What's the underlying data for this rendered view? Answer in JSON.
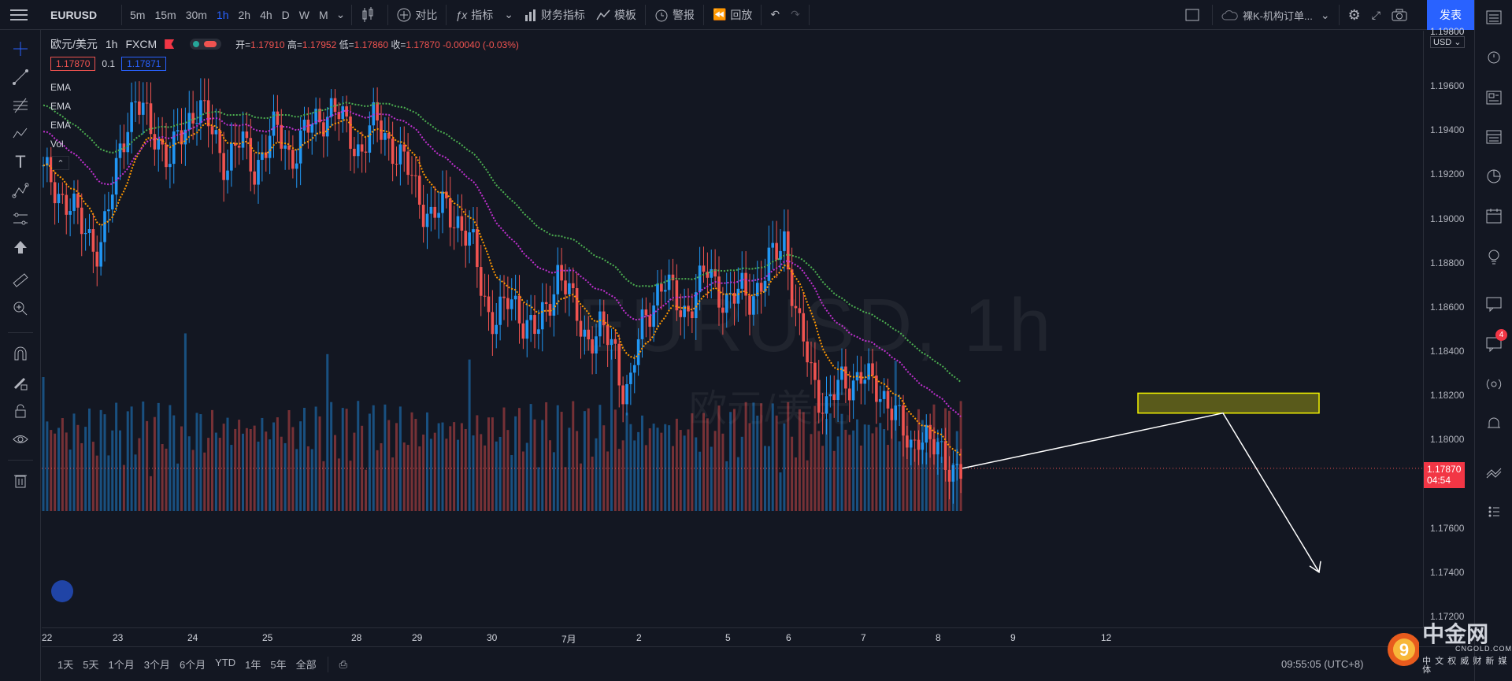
{
  "toolbar": {
    "symbol": "EURUSD",
    "intervals": [
      "5m",
      "15m",
      "30m",
      "1h",
      "2h",
      "4h",
      "D",
      "W",
      "M"
    ],
    "active_interval": "1h",
    "compare": "对比",
    "indicators": "指标",
    "financials": "财务指标",
    "templates": "模板",
    "alerts": "警报",
    "replay": "回放",
    "layout_name": "裸K-机构订单...",
    "publish": "发表"
  },
  "legend": {
    "title": "欧元/美元",
    "interval": "1h",
    "exchange": "FXCM",
    "open_label": "开=",
    "open": "1.17910",
    "high_label": "高=",
    "high": "1.17952",
    "low_label": "低=",
    "low": "1.17860",
    "close_label": "收=",
    "close": "1.17870",
    "change": "-0.00040 (-0.03%)",
    "bid": "1.17870",
    "spread": "0.1",
    "ask": "1.17871",
    "indicators": [
      "EMA",
      "EMA",
      "EMA",
      "Vol"
    ]
  },
  "watermark": {
    "symbol": "EURUSD, 1h",
    "name": "欧元/美元"
  },
  "price_axis": {
    "currency": "USD",
    "top_label": "1.19800",
    "labels": [
      "1.19600",
      "1.19400",
      "1.19200",
      "1.19000",
      "1.18800",
      "1.18600",
      "1.18400",
      "1.18200",
      "1.18000",
      "1.17600",
      "1.17400",
      "1.17200"
    ],
    "last_price": "1.17870",
    "countdown": "04:54"
  },
  "time_axis": [
    "22",
    "23",
    "24",
    "25",
    "28",
    "29",
    "30",
    "7月",
    "2",
    "5",
    "6",
    "7",
    "8",
    "9",
    "12"
  ],
  "bottom": {
    "ranges": [
      "1天",
      "5天",
      "1个月",
      "3个月",
      "6个月",
      "YTD",
      "1年",
      "5年",
      "全部"
    ],
    "clock": "09:55:05 (UTC+8)"
  },
  "logo": {
    "name": "中金网",
    "domain": "CNGOLD.COM",
    "tagline": "中 文 权 威 财 新 媒 体"
  },
  "colors": {
    "up": "#2196f3",
    "down": "#ef5350",
    "ema_fast": "#ff9800",
    "ema_mid": "#c030d0",
    "ema_slow": "#4caf50",
    "zone": "#6b6b1a",
    "zone_border": "#f5f500",
    "accent": "#2962ff"
  },
  "chart_data": {
    "type": "candlestick",
    "xlabel": "",
    "ylabel": "",
    "ylim": [
      1.1715,
      1.1985
    ],
    "close_series": [
      1.192,
      1.1918,
      1.1913,
      1.1908,
      1.1905,
      1.1898,
      1.1895,
      1.189,
      1.1885,
      1.19,
      1.1915,
      1.1935,
      1.1945,
      1.1952,
      1.1948,
      1.1942,
      1.1938,
      1.1932,
      1.1925,
      1.1935,
      1.194,
      1.1948,
      1.1952,
      1.1945,
      1.1938,
      1.193,
      1.1925,
      1.1932,
      1.1935,
      1.1928,
      1.1922,
      1.193,
      1.1936,
      1.194,
      1.1935,
      1.1928,
      1.1932,
      1.1938,
      1.1942,
      1.1945,
      1.1948,
      1.195,
      1.1946,
      1.194,
      1.1935,
      1.193,
      1.1938,
      1.1944,
      1.194,
      1.1935,
      1.193,
      1.1925,
      1.192,
      1.1912,
      1.1905,
      1.19,
      1.1903,
      1.1905,
      1.1902,
      1.1898,
      1.1892,
      1.1885,
      1.187,
      1.1858,
      1.1855,
      1.1858,
      1.1862,
      1.186,
      1.1855,
      1.1852,
      1.1848,
      1.1856,
      1.1866,
      1.1878,
      1.187,
      1.186,
      1.1852,
      1.1846,
      1.1848,
      1.185,
      1.1845,
      1.184,
      1.1825,
      1.1822,
      1.184,
      1.1852,
      1.186,
      1.1868,
      1.1872,
      1.1865,
      1.186,
      1.1858,
      1.1864,
      1.187,
      1.1876,
      1.1872,
      1.1866,
      1.1862,
      1.1864,
      1.1867,
      1.1865,
      1.1868,
      1.1872,
      1.188,
      1.1886,
      1.1892,
      1.187,
      1.185,
      1.184,
      1.1828,
      1.182,
      1.1815,
      1.182,
      1.1825,
      1.1826,
      1.1828,
      1.183,
      1.1825,
      1.1822,
      1.182,
      1.1818,
      1.181,
      1.18,
      1.1795,
      1.1805,
      1.1802,
      1.1796,
      1.1793,
      1.179,
      1.1788,
      1.1787
    ],
    "ema_fast_end": 1.1824,
    "ema_mid_end": 1.1834,
    "ema_slow_end": 1.1843,
    "zone": {
      "price_low": 1.1812,
      "price_high": 1.1821
    },
    "forecast_arrow": [
      "up to zone",
      "then down"
    ],
    "last": 1.1787
  }
}
